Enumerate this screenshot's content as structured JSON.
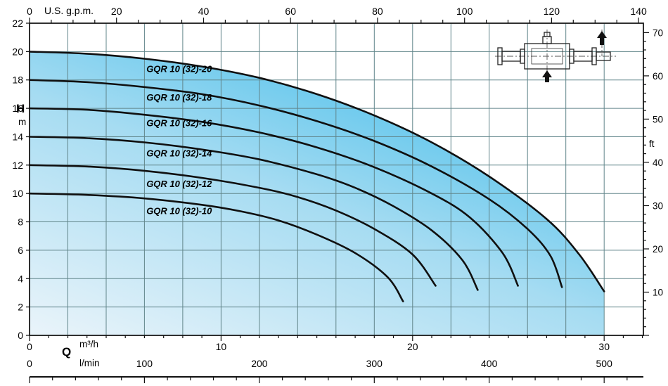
{
  "chart_data": {
    "type": "line",
    "colors": {
      "fill_light": "#eaf4fa",
      "fill_mid": "#a6dcf2",
      "fill_strong": "#3ebbe9",
      "grid": "#61858a",
      "border": "#1a1a1a",
      "curve": "#101010",
      "text": "#000000"
    },
    "axes": {
      "top": {
        "unit": "U.S. g.p.m.",
        "ticks": [
          0,
          20,
          40,
          60,
          80,
          100,
          120,
          140
        ],
        "minor_step": 5,
        "to_m3h": 0.227125
      },
      "left": {
        "label": "H",
        "unit": "m",
        "ticks": [
          0,
          2,
          4,
          6,
          8,
          10,
          12,
          14,
          16,
          18,
          20,
          22
        ],
        "max": 22
      },
      "right": {
        "unit": "ft",
        "ticks": [
          10,
          20,
          30,
          40,
          50,
          60,
          70
        ],
        "minor_step": 2,
        "to_m": 0.3048
      },
      "bottom_m3h": {
        "label": "Q",
        "unit": "m³/h",
        "ticks": [
          0,
          10,
          20,
          30
        ],
        "minor_step": 1
      },
      "bottom_lmin": {
        "unit": "l/min",
        "ticks": [
          0,
          100,
          200,
          300,
          400,
          500
        ],
        "minor_step": 20,
        "to_m3h": 0.06
      }
    },
    "grid": {
      "x_step_m3h": 2,
      "y_step_m": 2
    },
    "series": [
      {
        "name": "GQR 10 (32)-20",
        "label_at": [
          6.1,
          18.55
        ],
        "points": [
          [
            0,
            20
          ],
          [
            3,
            19.85
          ],
          [
            6,
            19.5
          ],
          [
            9,
            18.95
          ],
          [
            12,
            18.15
          ],
          [
            15,
            17.0
          ],
          [
            18,
            15.5
          ],
          [
            21,
            13.6
          ],
          [
            24,
            11.2
          ],
          [
            27,
            8.2
          ],
          [
            28.7,
            5.7
          ],
          [
            30,
            3.1
          ]
        ]
      },
      {
        "name": "GQR 10 (32)-18",
        "label_at": [
          6.1,
          16.55
        ],
        "points": [
          [
            0,
            18
          ],
          [
            3,
            17.85
          ],
          [
            6,
            17.5
          ],
          [
            9,
            17.0
          ],
          [
            12,
            16.2
          ],
          [
            15,
            15.1
          ],
          [
            18,
            13.7
          ],
          [
            21,
            11.9
          ],
          [
            24,
            9.6
          ],
          [
            26,
            7.5
          ],
          [
            27.2,
            5.6
          ],
          [
            27.8,
            3.4
          ]
        ]
      },
      {
        "name": "GQR 10 (32)-16",
        "label_at": [
          6.1,
          14.75
        ],
        "points": [
          [
            0,
            16
          ],
          [
            3,
            15.9
          ],
          [
            6,
            15.55
          ],
          [
            9,
            15.05
          ],
          [
            12,
            14.3
          ],
          [
            15,
            13.25
          ],
          [
            18,
            11.85
          ],
          [
            21,
            10.0
          ],
          [
            23,
            8.3
          ],
          [
            24.7,
            5.8
          ],
          [
            25.5,
            3.5
          ]
        ]
      },
      {
        "name": "GQR 10 (32)-14",
        "label_at": [
          6.1,
          12.6
        ],
        "points": [
          [
            0,
            14
          ],
          [
            3,
            13.9
          ],
          [
            6,
            13.6
          ],
          [
            9,
            13.1
          ],
          [
            12,
            12.4
          ],
          [
            15,
            11.35
          ],
          [
            17,
            10.4
          ],
          [
            19,
            9.1
          ],
          [
            21,
            7.4
          ],
          [
            22.6,
            5.3
          ],
          [
            23.4,
            3.2
          ]
        ]
      },
      {
        "name": "GQR 10 (32)-12",
        "label_at": [
          6.1,
          10.45
        ],
        "points": [
          [
            0,
            12
          ],
          [
            3,
            11.9
          ],
          [
            6,
            11.6
          ],
          [
            9,
            11.1
          ],
          [
            12,
            10.4
          ],
          [
            14,
            9.75
          ],
          [
            16,
            8.8
          ],
          [
            18,
            7.5
          ],
          [
            20,
            5.7
          ],
          [
            21.2,
            3.5
          ]
        ]
      },
      {
        "name": "GQR 10 (32)-10",
        "label_at": [
          6.1,
          8.55
        ],
        "points": [
          [
            0,
            10
          ],
          [
            3,
            9.9
          ],
          [
            6,
            9.65
          ],
          [
            9,
            9.2
          ],
          [
            11,
            8.75
          ],
          [
            13,
            8.1
          ],
          [
            15,
            7.1
          ],
          [
            17,
            5.8
          ],
          [
            18.7,
            4.1
          ],
          [
            19.5,
            2.4
          ]
        ]
      }
    ]
  }
}
